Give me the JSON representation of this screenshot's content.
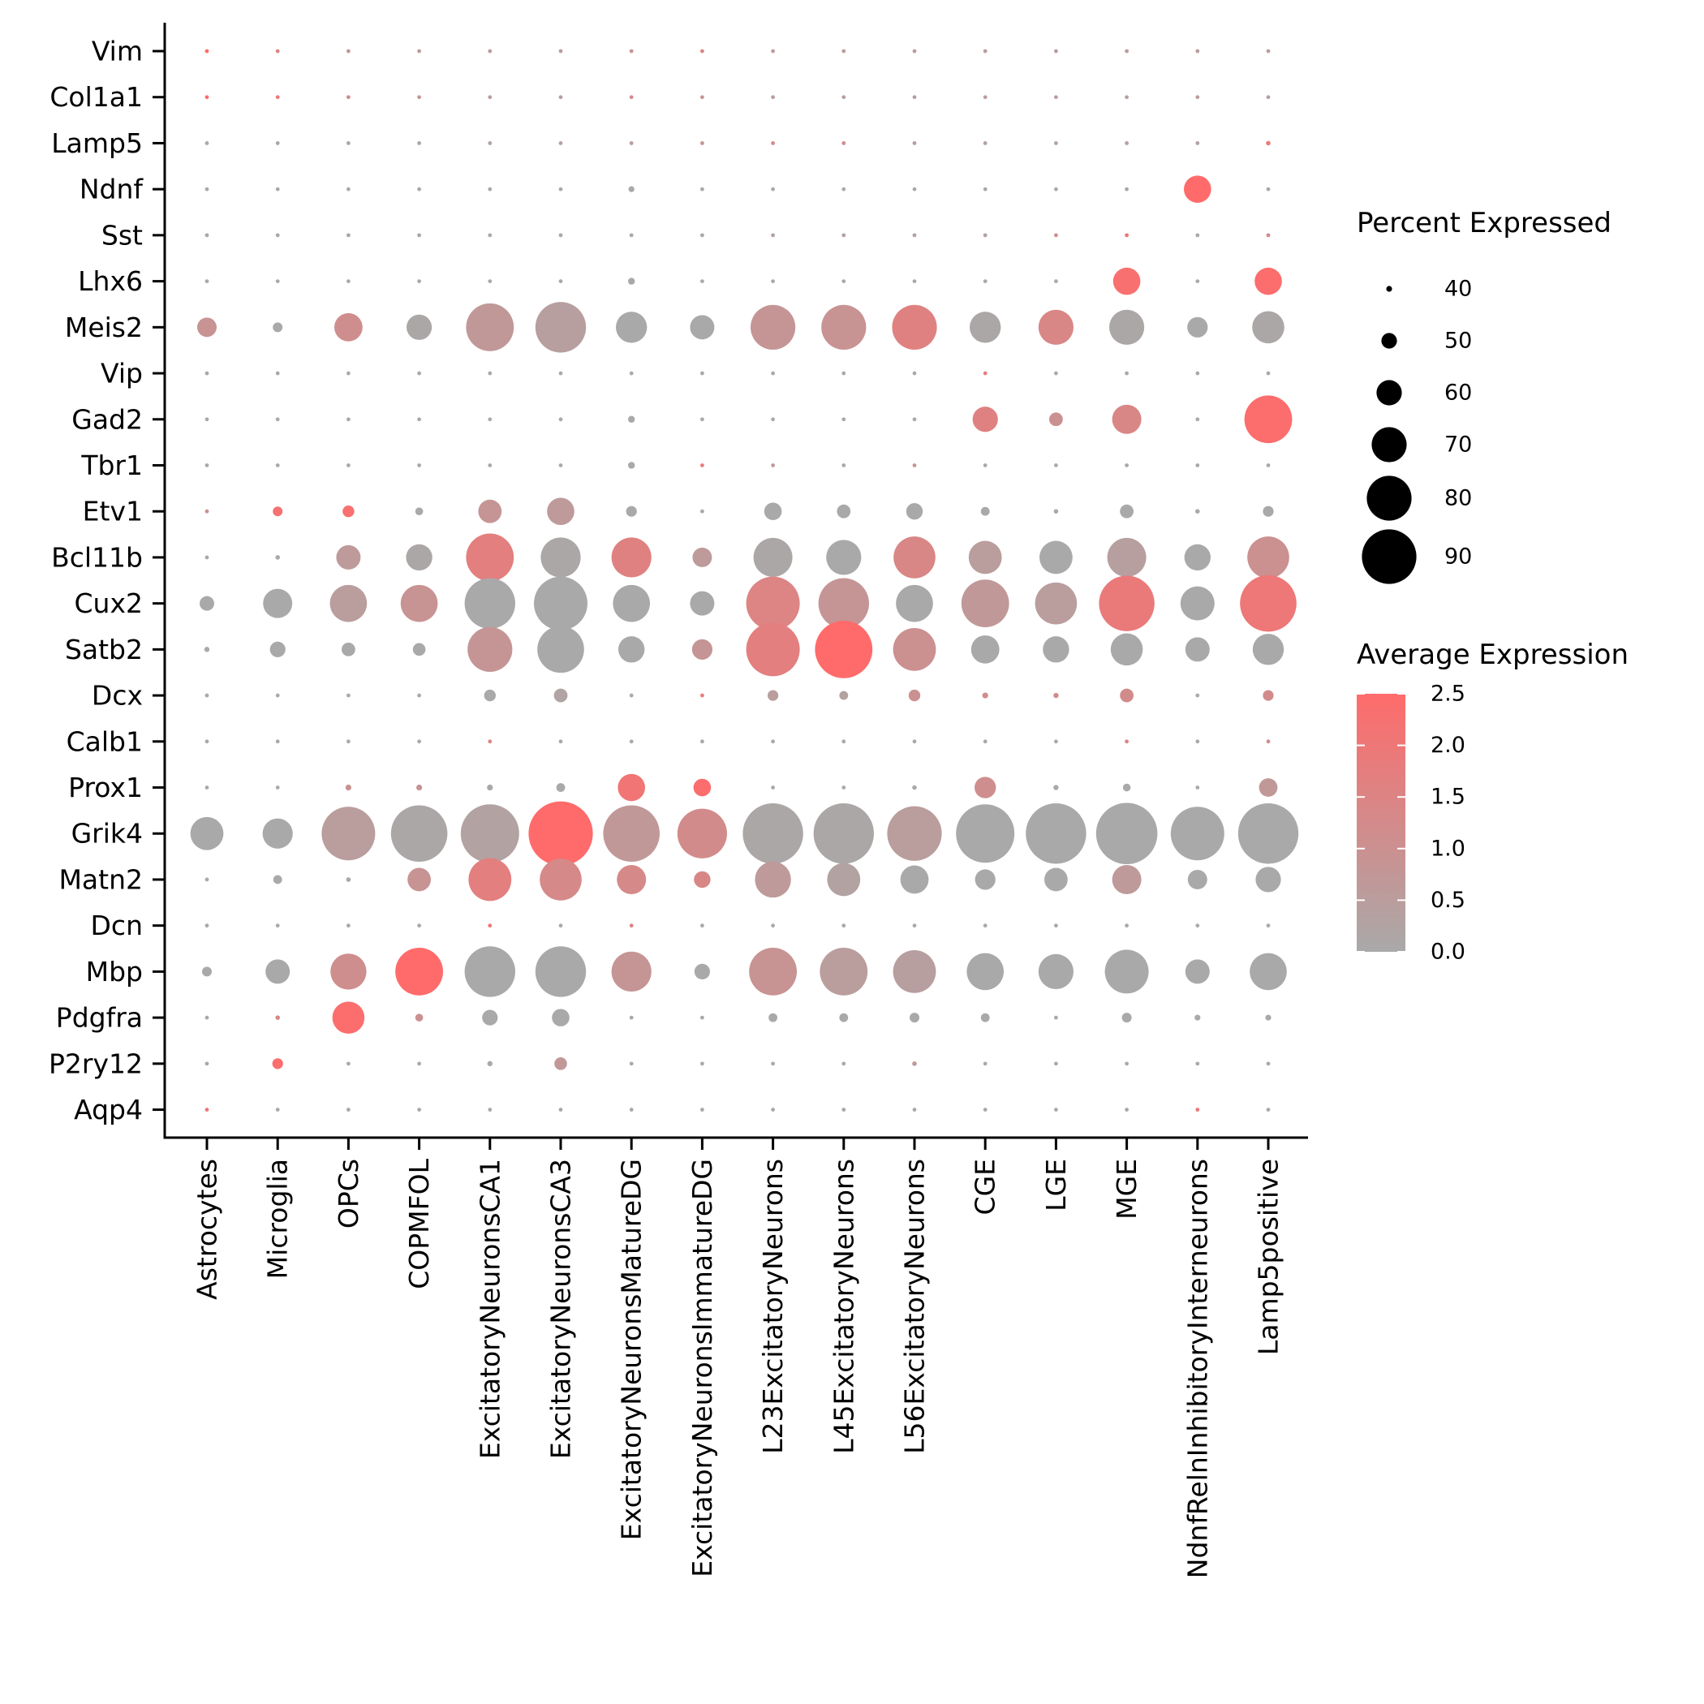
{
  "chart_data": {
    "type": "dotplot",
    "genes": [
      "Vim",
      "Col1a1",
      "Lamp5",
      "Ndnf",
      "Sst",
      "Lhx6",
      "Meis2",
      "Vip",
      "Gad2",
      "Tbr1",
      "Etv1",
      "Bcl11b",
      "Cux2",
      "Satb2",
      "Dcx",
      "Calb1",
      "Prox1",
      "Grik4",
      "Matn2",
      "Dcn",
      "Mbp",
      "Pdgfra",
      "P2ry12",
      "Aqp4"
    ],
    "cell_types": [
      "Astrocytes",
      "Microglia",
      "OPCs",
      "COPMFOL",
      "ExcitatoryNeuronsCA1",
      "ExcitatoryNeuronsCA3",
      "ExcitatoryNeuronsMatureDG",
      "ExcitatoryNeuronsImmatureDG",
      "L23ExcitatoryNeurons",
      "L45ExcitatoryNeurons",
      "L56ExcitatoryNeurons",
      "CGE",
      "LGE",
      "MGE",
      "NdnfRelnInhibitoryInterneurons",
      "Lamp5positive"
    ],
    "percent_expressed": [
      [
        37,
        37,
        37,
        37,
        37,
        37,
        37,
        37,
        37,
        37,
        37,
        37,
        37,
        37,
        37,
        37
      ],
      [
        37,
        37,
        37,
        37,
        37,
        37,
        37,
        37,
        37,
        37,
        37,
        37,
        37,
        37,
        37,
        37
      ],
      [
        37,
        37,
        37,
        37,
        37,
        37,
        37,
        37,
        37,
        37,
        37,
        37,
        37,
        37,
        37,
        38
      ],
      [
        37,
        37,
        37,
        37,
        37,
        37,
        40,
        37,
        37,
        37,
        37,
        37,
        37,
        37,
        62,
        37
      ],
      [
        37,
        37,
        37,
        37,
        37,
        37,
        37,
        37,
        37,
        37,
        37,
        37,
        37,
        37,
        37,
        37
      ],
      [
        37,
        37,
        37,
        37,
        37,
        37,
        41,
        37,
        37,
        37,
        37,
        37,
        37,
        62,
        37,
        62
      ],
      [
        54,
        44,
        63,
        60,
        83,
        86,
        66,
        59,
        80,
        80,
        80,
        66,
        70,
        70,
        55,
        67
      ],
      [
        37,
        37,
        37,
        37,
        37,
        37,
        37,
        37,
        37,
        37,
        37,
        37,
        37,
        37,
        37,
        37
      ],
      [
        37,
        37,
        37,
        37,
        37,
        37,
        41,
        37,
        37,
        37,
        37,
        60,
        48,
        64,
        37,
        83
      ],
      [
        37,
        37,
        37,
        37,
        37,
        37,
        41,
        37,
        37,
        37,
        37,
        37,
        37,
        37,
        37,
        37
      ],
      [
        37,
        44,
        46,
        42,
        58,
        62,
        45,
        37,
        52,
        48,
        51,
        43,
        38,
        48,
        38,
        45
      ],
      [
        37,
        38,
        59,
        61,
        83,
        75,
        75,
        54,
        74,
        70,
        77,
        68,
        68,
        74,
        61,
        77
      ],
      [
        49,
        64,
        72,
        72,
        86,
        89,
        72,
        59,
        89,
        86,
        72,
        83,
        77,
        91,
        69,
        92
      ],
      [
        39,
        50,
        48,
        47,
        80,
        82,
        61,
        55,
        89,
        93,
        78,
        63,
        61,
        67,
        59,
        66
      ],
      [
        37,
        37,
        37,
        37,
        46,
        48,
        37,
        37,
        45,
        43,
        46,
        40,
        39,
        48,
        37,
        45
      ],
      [
        37,
        37,
        37,
        37,
        37,
        37,
        37,
        37,
        37,
        37,
        37,
        37,
        37,
        37,
        37,
        37
      ],
      [
        37,
        37,
        40,
        40,
        40,
        43,
        62,
        52,
        37,
        37,
        38,
        56,
        39,
        42,
        37,
        53
      ],
      [
        68,
        65,
        89,
        92,
        94,
        100,
        92,
        85,
        96,
        96,
        90,
        94,
        96,
        97,
        89,
        96
      ],
      [
        37,
        43,
        38,
        58,
        78,
        77,
        64,
        51,
        71,
        68,
        63,
        55,
        58,
        64,
        54,
        60
      ],
      [
        37,
        37,
        37,
        37,
        37,
        37,
        37,
        37,
        37,
        37,
        37,
        37,
        37,
        37,
        37,
        37
      ],
      [
        44,
        59,
        71,
        83,
        86,
        86,
        75,
        50,
        83,
        83,
        78,
        72,
        70,
        79,
        59,
        72
      ],
      [
        37,
        38,
        67,
        42,
        50,
        52,
        37,
        37,
        43,
        43,
        44,
        43,
        37,
        44,
        40,
        40
      ],
      [
        37,
        45,
        37,
        37,
        39,
        47,
        37,
        37,
        37,
        37,
        38,
        37,
        37,
        37,
        37,
        37
      ],
      [
        37,
        37,
        37,
        37,
        37,
        37,
        37,
        37,
        37,
        37,
        37,
        37,
        37,
        37,
        37,
        37
      ]
    ],
    "average_expression": [
      [
        2.5,
        1.5,
        0.8,
        0.5,
        0.5,
        0.5,
        0.8,
        1.5,
        0.5,
        0.5,
        0.5,
        0.5,
        0.5,
        0.5,
        0.5,
        0.5
      ],
      [
        2.5,
        2.0,
        1.2,
        0.8,
        0.5,
        0.5,
        1.2,
        0.8,
        0.5,
        0.5,
        0.5,
        0.5,
        0.5,
        0.5,
        0.5,
        0.5
      ],
      [
        0.0,
        0.0,
        0.0,
        0.0,
        0.3,
        0.3,
        0.5,
        0.8,
        1.2,
        1.0,
        0.5,
        0.3,
        0.3,
        0.3,
        0.3,
        1.8
      ],
      [
        0.0,
        0.0,
        0.0,
        0.0,
        0.0,
        0.0,
        0.0,
        0.0,
        0.0,
        0.0,
        0.0,
        0.0,
        0.0,
        0.0,
        2.5,
        0.0
      ],
      [
        0.0,
        0.0,
        0.0,
        0.0,
        0.0,
        0.0,
        0.0,
        0.0,
        0.3,
        0.3,
        0.3,
        0.3,
        1.2,
        2.0,
        0.0,
        1.2
      ],
      [
        0.0,
        0.0,
        0.0,
        0.0,
        0.0,
        0.0,
        0.0,
        0.0,
        0.0,
        0.0,
        0.0,
        0.0,
        0.0,
        2.3,
        0.0,
        2.4
      ],
      [
        0.9,
        0.0,
        1.1,
        0.1,
        0.7,
        0.4,
        0.0,
        0.0,
        0.8,
        0.9,
        1.6,
        0.1,
        1.4,
        0.1,
        0.0,
        0.1
      ],
      [
        0.0,
        0.0,
        0.0,
        0.0,
        0.0,
        0.0,
        0.0,
        0.0,
        0.0,
        0.0,
        0.0,
        1.8,
        0.0,
        0.0,
        0.0,
        0.0
      ],
      [
        0.0,
        0.0,
        0.0,
        0.0,
        0.0,
        0.0,
        0.0,
        0.0,
        0.0,
        0.0,
        0.0,
        1.6,
        1.0,
        1.4,
        0.0,
        2.4
      ],
      [
        0.0,
        0.0,
        0.0,
        0.0,
        0.0,
        0.0,
        0.0,
        1.8,
        0.6,
        0.0,
        0.9,
        0.0,
        0.0,
        0.0,
        0.0,
        0.0
      ],
      [
        1.0,
        2.2,
        2.3,
        0.0,
        0.8,
        0.6,
        0.0,
        0.0,
        0.0,
        0.0,
        0.0,
        0.0,
        0.0,
        0.0,
        0.0,
        0.0
      ],
      [
        0.0,
        0.0,
        0.6,
        0.1,
        1.7,
        0.1,
        1.6,
        0.6,
        0.1,
        0.0,
        1.4,
        0.5,
        0.0,
        0.4,
        0.0,
        1.0
      ],
      [
        0.0,
        0.0,
        0.5,
        0.9,
        0.0,
        0.0,
        0.0,
        0.0,
        1.5,
        0.8,
        0.0,
        0.7,
        0.5,
        1.9,
        0.0,
        2.0
      ],
      [
        0.0,
        0.0,
        0.0,
        0.0,
        0.8,
        0.0,
        0.0,
        0.8,
        1.7,
        2.5,
        1.0,
        0.0,
        0.0,
        0.0,
        0.0,
        0.0
      ],
      [
        0.0,
        0.0,
        0.0,
        0.0,
        0.0,
        0.2,
        0.0,
        1.8,
        0.5,
        0.3,
        1.0,
        1.2,
        1.2,
        1.2,
        0.0,
        1.2
      ],
      [
        0.0,
        0.0,
        0.0,
        0.0,
        1.5,
        0.0,
        0.0,
        0.0,
        0.0,
        0.0,
        0.0,
        0.0,
        0.0,
        1.5,
        0.0,
        1.2
      ],
      [
        0.0,
        0.0,
        0.9,
        0.9,
        0.0,
        0.0,
        2.1,
        2.4,
        0.0,
        0.0,
        0.0,
        1.1,
        0.0,
        0.0,
        0.0,
        0.7
      ],
      [
        0.0,
        0.0,
        0.5,
        0.1,
        0.3,
        2.5,
        0.7,
        1.2,
        0.1,
        0.1,
        0.5,
        0.0,
        0.0,
        0.0,
        0.0,
        0.0
      ],
      [
        0.0,
        0.0,
        0.0,
        0.9,
        1.7,
        1.3,
        1.3,
        1.4,
        0.6,
        0.3,
        0.0,
        0.0,
        0.0,
        0.6,
        0.0,
        0.0
      ],
      [
        0.0,
        0.0,
        0.0,
        0.0,
        2.0,
        0.0,
        1.5,
        0.0,
        0.0,
        0.0,
        0.0,
        0.0,
        0.0,
        0.0,
        0.0,
        0.0
      ],
      [
        0.0,
        0.0,
        1.1,
        2.5,
        0.0,
        0.0,
        0.8,
        0.0,
        0.9,
        0.5,
        0.4,
        0.0,
        0.0,
        0.0,
        0.0,
        0.0
      ],
      [
        0.0,
        1.4,
        2.4,
        1.0,
        0.0,
        0.0,
        0.0,
        0.0,
        0.0,
        0.0,
        0.0,
        0.0,
        0.0,
        0.0,
        0.0,
        0.0
      ],
      [
        0.0,
        2.4,
        0.0,
        0.0,
        0.0,
        0.7,
        0.0,
        0.0,
        0.0,
        0.0,
        0.6,
        0.0,
        0.0,
        0.0,
        0.0,
        0.0
      ],
      [
        2.0,
        0.0,
        0.0,
        0.0,
        0.0,
        0.0,
        0.0,
        0.0,
        0.0,
        0.0,
        0.0,
        0.0,
        0.0,
        0.0,
        2.0,
        0.0
      ]
    ],
    "size_legend": {
      "title": "Percent Expressed",
      "values": [
        40,
        50,
        60,
        70,
        80,
        90
      ],
      "labels": [
        "40",
        "50",
        "60",
        "70",
        "80",
        "90"
      ]
    },
    "color_legend": {
      "title": "Average Expression",
      "range": [
        0.0,
        2.5
      ],
      "ticks": [
        "0.0",
        "0.5",
        "1.0",
        "1.5",
        "2.0",
        "2.5"
      ],
      "low_color": "#a9a9a9",
      "high_color": "#ff6b6b"
    },
    "xlabel": "",
    "ylabel": "",
    "grid": false
  }
}
